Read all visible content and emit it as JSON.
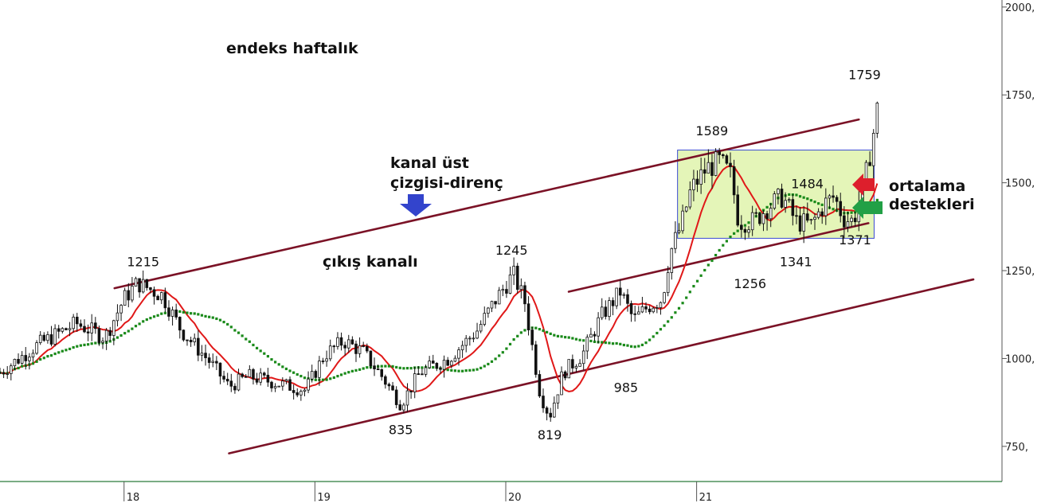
{
  "chart_data": {
    "type": "candlestick",
    "title": "endeks haftalık",
    "y_axis": {
      "side": "right",
      "ylim": [
        650,
        2020
      ],
      "ticks": [
        {
          "value": 2000,
          "label": "2000,"
        },
        {
          "value": 1750,
          "label": "1750,"
        },
        {
          "value": 1500,
          "label": "1500,"
        },
        {
          "value": 1250,
          "label": "1250,"
        },
        {
          "value": 1000,
          "label": "1000,"
        },
        {
          "value": 750,
          "label": "750,"
        }
      ]
    },
    "x_axis": {
      "range": [
        2017.35,
        2022.6
      ],
      "ticks": [
        {
          "value": 2018,
          "label": "18"
        },
        {
          "value": 2019,
          "label": "19"
        },
        {
          "value": 2020,
          "label": "20"
        },
        {
          "value": 2021,
          "label": "21"
        }
      ]
    },
    "price_anchors": [
      [
        2017.35,
        960
      ],
      [
        2017.55,
        1040
      ],
      [
        2017.75,
        1100
      ],
      [
        2017.9,
        1060
      ],
      [
        2018.0,
        1170
      ],
      [
        2018.07,
        1215
      ],
      [
        2018.2,
        1180
      ],
      [
        2018.3,
        1080
      ],
      [
        2018.45,
        990
      ],
      [
        2018.55,
        920
      ],
      [
        2018.65,
        950
      ],
      [
        2018.8,
        930
      ],
      [
        2018.95,
        910
      ],
      [
        2019.05,
        1010
      ],
      [
        2019.15,
        1050
      ],
      [
        2019.25,
        1020
      ],
      [
        2019.35,
        950
      ],
      [
        2019.45,
        870
      ],
      [
        2019.55,
        960
      ],
      [
        2019.7,
        1000
      ],
      [
        2019.85,
        1080
      ],
      [
        2019.95,
        1170
      ],
      [
        2020.04,
        1240
      ],
      [
        2020.1,
        1160
      ],
      [
        2020.18,
        900
      ],
      [
        2020.23,
        835
      ],
      [
        2020.3,
        960
      ],
      [
        2020.4,
        1010
      ],
      [
        2020.5,
        1120
      ],
      [
        2020.6,
        1190
      ],
      [
        2020.67,
        1110
      ],
      [
        2020.75,
        1150
      ],
      [
        2020.82,
        1170
      ],
      [
        2020.86,
        1300
      ],
      [
        2020.92,
        1380
      ],
      [
        2020.97,
        1480
      ],
      [
        2021.05,
        1540
      ],
      [
        2021.12,
        1560
      ],
      [
        2021.18,
        1520
      ],
      [
        2021.22,
        1390
      ],
      [
        2021.3,
        1390
      ],
      [
        2021.37,
        1430
      ],
      [
        2021.45,
        1460
      ],
      [
        2021.52,
        1390
      ],
      [
        2021.6,
        1380
      ],
      [
        2021.67,
        1440
      ],
      [
        2021.72,
        1460
      ],
      [
        2021.77,
        1400
      ],
      [
        2021.82,
        1390
      ],
      [
        2021.88,
        1500
      ],
      [
        2021.92,
        1620
      ],
      [
        2021.95,
        1720
      ]
    ],
    "moving_averages": [
      {
        "color": "#e01818",
        "style": "solid",
        "period": 10
      },
      {
        "color": "#1a8a1a",
        "style": "dotted",
        "period": 30
      }
    ],
    "channel_lines": [
      {
        "color": "#7b1226",
        "points": [
          [
            2017.95,
            1200
          ],
          [
            2021.85,
            1680
          ]
        ]
      },
      {
        "color": "#7b1226",
        "points": [
          [
            2018.55,
            730
          ],
          [
            2022.45,
            1225
          ]
        ]
      },
      {
        "color": "#7b1226",
        "points": [
          [
            2020.33,
            1190
          ],
          [
            2021.9,
            1385
          ]
        ]
      }
    ],
    "highlight_box": {
      "x_range": [
        2020.9,
        2021.93
      ],
      "y_range": [
        1342,
        1593
      ],
      "fill": "#e4f5b8",
      "stroke": "#3a4bd1"
    },
    "level_labels": [
      {
        "text": "1215",
        "x": 2018.1,
        "y": 1262
      },
      {
        "text": "835",
        "x": 2019.45,
        "y": 785
      },
      {
        "text": "1245",
        "x": 2020.03,
        "y": 1295
      },
      {
        "text": "819",
        "x": 2020.23,
        "y": 770
      },
      {
        "text": "985",
        "x": 2020.63,
        "y": 905
      },
      {
        "text": "1589",
        "x": 2021.08,
        "y": 1635
      },
      {
        "text": "1256",
        "x": 2021.28,
        "y": 1200
      },
      {
        "text": "1341",
        "x": 2021.52,
        "y": 1262
      },
      {
        "text": "1484",
        "x": 2021.58,
        "y": 1485
      },
      {
        "text": "1371",
        "x": 2021.83,
        "y": 1325
      },
      {
        "text": "1759",
        "x": 2021.88,
        "y": 1795
      }
    ],
    "annotations": {
      "title_label": "endeks haftalık",
      "resistance_line1": "kanal üst",
      "resistance_line2": "çizgisi-direnç",
      "channel_label": "çıkış kanalı",
      "support_line1": "ortalama",
      "support_line2": "destekleri"
    },
    "arrow_colors": {
      "blue": "#3344cc",
      "red": "#dd1f2c",
      "green": "#22a046"
    }
  }
}
